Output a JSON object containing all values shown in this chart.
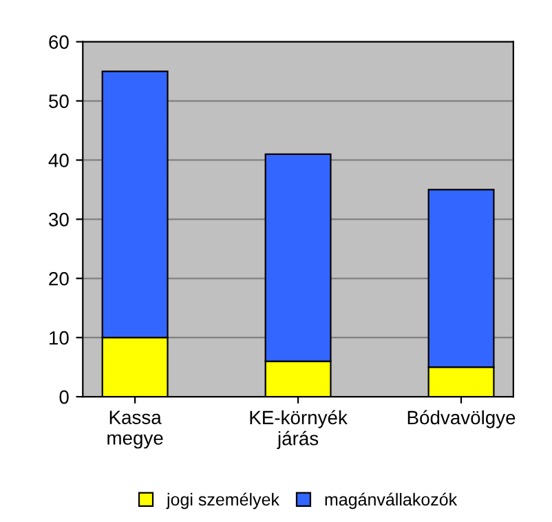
{
  "chart_data": {
    "type": "bar",
    "stacked": true,
    "categories": [
      "Kassa\nmegye",
      "KE-környék\njárás",
      "Bódvavölgye"
    ],
    "series": [
      {
        "name": "jogi személyek",
        "color": "#ffff00",
        "values": [
          10,
          6,
          5
        ]
      },
      {
        "name": "magánvállakozók",
        "color": "#3366ff",
        "values": [
          45,
          35,
          30
        ]
      }
    ],
    "ylim": [
      0,
      60
    ],
    "yticks": [
      0,
      10,
      20,
      30,
      40,
      50,
      60
    ],
    "grid": "y",
    "legend": "bottom"
  }
}
